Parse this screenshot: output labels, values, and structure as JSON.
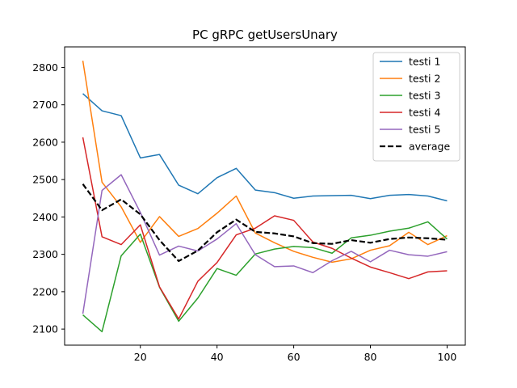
{
  "chart_data": {
    "type": "line",
    "title": "PC gRPC getUsersUnary",
    "xlabel": "",
    "ylabel": "",
    "xlim": [
      0.25,
      104.75
    ],
    "ylim": [
      2057,
      2855
    ],
    "xticks": [
      20,
      40,
      60,
      80,
      100
    ],
    "yticks": [
      2100,
      2200,
      2300,
      2400,
      2500,
      2600,
      2700,
      2800
    ],
    "grid": false,
    "legend_position": "top-right",
    "x": [
      5,
      10,
      15,
      20,
      25,
      30,
      35,
      40,
      45,
      50,
      55,
      60,
      65,
      70,
      75,
      80,
      85,
      90,
      95,
      100
    ],
    "series": [
      {
        "name": "testi 1",
        "color": "#1f77b4",
        "dashed": false,
        "values": [
          2730,
          2684,
          2671,
          2558,
          2567,
          2485,
          2462,
          2505,
          2530,
          2472,
          2465,
          2450,
          2456,
          2457,
          2458,
          2449,
          2458,
          2460,
          2456,
          2443
        ]
      },
      {
        "name": "testi 2",
        "color": "#ff7f0e",
        "dashed": false,
        "values": [
          2818,
          2493,
          2427,
          2332,
          2401,
          2348,
          2369,
          2410,
          2456,
          2357,
          2331,
          2308,
          2292,
          2279,
          2288,
          2311,
          2323,
          2359,
          2326,
          2350
        ]
      },
      {
        "name": "testi 3",
        "color": "#2ca02c",
        "dashed": false,
        "values": [
          2138,
          2093,
          2296,
          2354,
          2212,
          2121,
          2183,
          2262,
          2244,
          2301,
          2314,
          2321,
          2318,
          2303,
          2344,
          2351,
          2362,
          2370,
          2387,
          2341
        ]
      },
      {
        "name": "testi 4",
        "color": "#d62728",
        "dashed": false,
        "values": [
          2613,
          2347,
          2326,
          2379,
          2213,
          2127,
          2228,
          2278,
          2352,
          2370,
          2403,
          2391,
          2333,
          2316,
          2290,
          2266,
          2251,
          2235,
          2253,
          2256
        ]
      },
      {
        "name": "testi 5",
        "color": "#9467bd",
        "dashed": false,
        "values": [
          2141,
          2471,
          2513,
          2412,
          2298,
          2322,
          2309,
          2341,
          2382,
          2299,
          2267,
          2269,
          2251,
          2283,
          2308,
          2280,
          2311,
          2299,
          2295,
          2307
        ]
      },
      {
        "name": "average",
        "color": "#000000",
        "dashed": true,
        "values": [
          2488,
          2418,
          2447,
          2407,
          2338,
          2282,
          2310,
          2359,
          2393,
          2360,
          2356,
          2348,
          2330,
          2328,
          2338,
          2331,
          2341,
          2345,
          2343,
          2339
        ]
      }
    ]
  }
}
